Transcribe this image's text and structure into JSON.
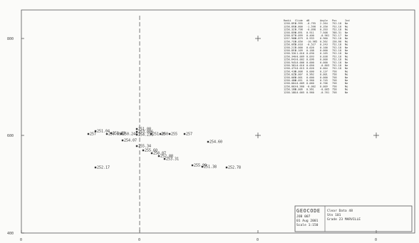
{
  "plot": {
    "border_color": "#555555",
    "axis_color": "#444444",
    "left_ticks": [
      "800",
      "600",
      "400"
    ],
    "bottom_ticks": [
      "0",
      "0",
      "0",
      "0"
    ],
    "crosses": [
      {
        "col": 2,
        "row": 0
      },
      {
        "col": 2,
        "row": 1
      },
      {
        "col": 3,
        "row": 1
      }
    ]
  },
  "points": [
    {
      "label": "251.04"
    },
    {
      "label": "251.03"
    },
    {
      "label": "251.08"
    },
    {
      "label": "257"
    },
    {
      "label": "250.896"
    },
    {
      "label": "250.244"
    },
    {
      "label": "253.006"
    },
    {
      "label": "254.231"
    },
    {
      "label": "251.20"
    },
    {
      "label": "250"
    },
    {
      "label": "255"
    },
    {
      "label": "257"
    },
    {
      "label": "254.07"
    },
    {
      "label": "255.34"
    },
    {
      "label": "255.60"
    },
    {
      "label": "258.07"
    },
    {
      "label": "252.08"
    },
    {
      "label": "253.31"
    },
    {
      "label": "252.17"
    },
    {
      "label": "254.60"
    },
    {
      "label": "255.99"
    },
    {
      "label": "251.38"
    },
    {
      "label": "252.78"
    }
  ],
  "table": {
    "headers": [
      "Radii",
      "Slide",
      "dB",
      "Angle",
      "Pos",
      "Ind"
    ],
    "rows": [
      [
        "1258.891",
        "0.995",
        "-0.795",
        "2.264",
        "752.18",
        "Ne"
      ],
      [
        "1258.893",
        "0.800",
        "-1.598",
        "0.350",
        "752.18",
        "Ne"
      ],
      [
        "1258.327",
        "0.798",
        "-0.098",
        "0.393",
        "752.18",
        "Ne"
      ],
      [
        "1258.859",
        "0.891",
        "0.911",
        "7.508",
        "788.31",
        "Ne"
      ],
      [
        "1258.877",
        "0.099",
        "0.400",
        "-0.961",
        "752.17",
        "Ne"
      ],
      [
        "1257.968",
        "0.879",
        "0.933",
        "0.960",
        "752.18",
        "Ne"
      ],
      [
        "1258.733",
        "0.050",
        "-10.985",
        "0.562",
        "158.68",
        "Ne"
      ],
      [
        "1258.095",
        "0.018",
        "-0.527",
        "0.243",
        "752.18",
        "Ne"
      ],
      [
        "1258.217",
        "0.000",
        "0.026",
        "0.100",
        "752.18",
        "Ne"
      ],
      [
        "1258.891",
        "0.109",
        "0.188",
        "0.000",
        "752.18",
        "Ne"
      ],
      [
        "1258.326",
        "-1.016",
        "0.030",
        "0.165",
        "752.18",
        "Ne"
      ],
      [
        "1258.340",
        "-0.009",
        "0.093",
        "0.038",
        "752.18",
        "Ne"
      ],
      [
        "1258.642",
        "-0.002",
        "0.096",
        "0.000",
        "752.18",
        "Ne"
      ],
      [
        "1258.945",
        "-0.006",
        "0.000",
        "0.000",
        "752.18",
        "Ne"
      ],
      [
        "1258.382",
        "-0.016",
        "0.050",
        "-0.803",
        "752.18",
        "Ne"
      ],
      [
        "1258.473",
        "-0.015",
        "0.026",
        "0.004",
        "752.18",
        "Ne"
      ],
      [
        "1258.418",
        "0.008",
        "0.000",
        "0.137",
        "758",
        "Ne"
      ],
      [
        "1258.025",
        "0.007",
        "0.962",
        "0.001",
        "758",
        "Ne"
      ],
      [
        "1258.005",
        "0.001",
        "0.000",
        "0.000",
        "758",
        "Ne"
      ],
      [
        "1258.480",
        "0.051",
        "0.960",
        "0.745",
        "758",
        "Ne"
      ],
      [
        "1258.004",
        "-0.009",
        "0.060",
        "0.706",
        "758",
        "Ne"
      ],
      [
        "1258.003",
        "-0.900",
        "-0.002",
        "0.009",
        "758",
        "Ne"
      ],
      [
        "1258.168",
        "0.006",
        "0.961",
        "-0.005",
        "758",
        "Ne"
      ],
      [
        "1258.188",
        "-0.005",
        "0.960",
        "-0.761",
        "758",
        "Ne"
      ]
    ]
  },
  "title_block": {
    "logo_text": "GEOCODE",
    "left_lines": [
      "JOB 007",
      "01 Aug 2001",
      "Scale 1:150"
    ],
    "right_lines": [
      "Clear Data 48",
      "Stn 101",
      "Grade 23  MARVILLE"
    ]
  }
}
